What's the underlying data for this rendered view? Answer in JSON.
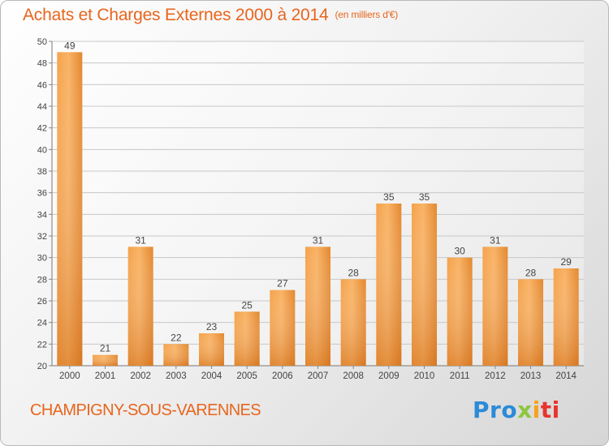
{
  "header": {
    "title": "Achats et Charges Externes 2000 à 2014",
    "unit": "(en milliers d'€)"
  },
  "footer": {
    "city": "CHAMPIGNY-SOUS-VARENNES",
    "logo_parts": [
      "Pro",
      "x",
      "i",
      "ti"
    ]
  },
  "colors": {
    "title": "#e8651d",
    "bar_light": "#f9ad5e",
    "bar_dark": "#e0781d",
    "grid": "#c8c8c8"
  },
  "chart_data": {
    "type": "bar",
    "categories": [
      "2000",
      "2001",
      "2002",
      "2003",
      "2004",
      "2005",
      "2006",
      "2007",
      "2008",
      "2009",
      "2010",
      "2011",
      "2012",
      "2013",
      "2014"
    ],
    "values": [
      49,
      21,
      31,
      22,
      23,
      25,
      27,
      31,
      28,
      35,
      35,
      30,
      31,
      28,
      29
    ],
    "ylim": [
      20,
      50
    ],
    "yticks": [
      20,
      22,
      24,
      26,
      28,
      30,
      32,
      34,
      36,
      38,
      40,
      42,
      44,
      46,
      48,
      50
    ],
    "grid": true,
    "data_labels": true
  }
}
